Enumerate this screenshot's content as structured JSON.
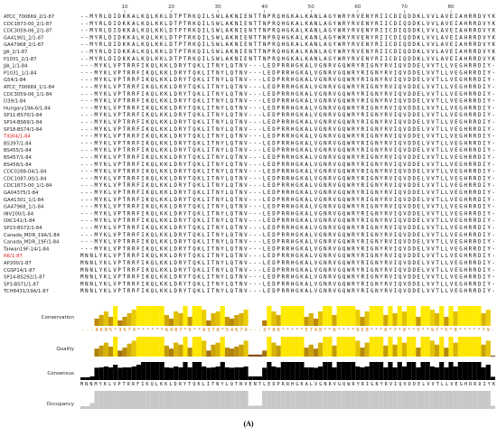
{
  "ruler": {
    "ticks": [
      10,
      20,
      30,
      40,
      50,
      60,
      70,
      80
    ]
  },
  "sequences": [
    {
      "name": "ATCC_700669_2/1-87",
      "sequence": "--MYRLDIDKKALKQLKKLDTPTRKQILSWLAKNIENTTNPRQHGKALKANLAGYWRYRVENYRIICDIQDDKLVVLAVEIAHRRDVYK"
    },
    {
      "name": "CDC1873-00_2/1-87",
      "sequence": "--MYRLDIDKKALKQLKKLDTPTRKQILSWLAKNIENTTNPRQHGKALKANLAGYWRYRVENYRIICDIQDDKLVVLAVEIAHRRDVYK"
    },
    {
      "name": "CDC3059-06_2/1-87",
      "sequence": "--MYRLDIDKKALKQLKKLDTPTRKQILSWLAKNIENTTNPRQHGKALKANLAGYWRYRVENYRIICDIQDDKLVVLAVEIAHRRDVYK"
    },
    {
      "name": "GA41901_2/1-87",
      "sequence": "--MYRLDIDKKALKQLKKLDTPTRKQILSWLAKNIENTTNPRQHGKALKANLAGYWRYRVENYRIICDIQDDKLVVLAVEIAHRRDVYK"
    },
    {
      "name": "GA47968_2/1-87",
      "sequence": "--MYRLDIDKKALKQLKKLDTPTRKQILSWLAKNIENTTNPRQHGKALKANLAGYWRYRVENYRIICDIQDDKLVVLAVEIAHRRDVYK"
    },
    {
      "name": "JJA_2/1-87",
      "sequence": "--MYRLDIDKKALKQLKKLDTPTRKQILSWLAKNIENTTNPRQHGKALKANLAGYWRYRVENYRIICDIQDDKLVVLAVEIAHRRDVYK"
    },
    {
      "name": "P1031_2/1-87",
      "sequence": "--MYRLDIDKKALKQLKKLDTPTRKQILSWLAKNIENTTNPRQHGKALKANLAGYWRYRVENYRIICDIQDDKLVVLAVEIAHRRDVYK"
    },
    {
      "name": "JJA_1/1-84",
      "sequence": "---MYKLVPTRRFIKQLKKLDRYTQKLITNYLQTNV---LEDPRRHGKALVGNRVGQWRYRIGNYRVIQVDDELVVTLLVEGHRRDIY-"
    },
    {
      "name": "P1031_1/1-84",
      "sequence": "---MYKLVPTRRFIKQLKKLDRYTQKLITNYLQTNV---LEDPRRHGKALVGNRVGQWRYRIGNYRVIQVDDELVVTLLVEGHRRDIY-"
    },
    {
      "name": "G54/1-84",
      "sequence": "---MYKLVPTRRFIKQLKKLDRYTQKLITNYLQTNV---LEDPRRHGKALVGNRVGQWRYRIGNYRVIQVDDELVVTLLVEGHRRDIY-"
    },
    {
      "name": "ATCC_700669_1/1-84",
      "sequence": "---MYKLVPTRRFIKQLKKLDRYTQKLITNYLQTNV---LEDPRRHGKALVGNRVGQWRYRIGNYRVIQVDDELVVTLLVEGHRRDIY-"
    },
    {
      "name": "CDC3059-06_1/1-84",
      "sequence": "---MYKLVPTRRFIKQLKKLDRYTQKLITNYLQTNV---LEDPRRHGKALVGNRVGQWRYRIGNYRVIQVDDELVVTLLVEGHRRDIY-"
    },
    {
      "name": "D39/1-84",
      "sequence": "---MYKLVPTRRFIKQLKKLDRYTQKLITNYLQTNV---LEDPRRHGKALVGNRVGQWRYRIGNYRVIQVDDELVVTLLVEGHRRDIY-"
    },
    {
      "name": "Hungary19A-6/1-84",
      "sequence": "---MYKLVPTRRFIKQLKKLDRYTQKLITNYLQTNV---LEDPRRHGKALVGNRVGQWRYRIGNYRVIQVDDELVVTLLVEGHRRDIY-"
    },
    {
      "name": "SP11-BS70/1-84",
      "sequence": "---MYKLVPTRRFIKQLKKLDRYTQKLITNYLQTNV---LEDPRRHGKALVGNRVGQWRYRIGNYRVIQVDDELVVTLLVEGHRRDIY-"
    },
    {
      "name": "SP14-BS69/1-84",
      "sequence": "---MYKLVPTRRFIKQLKKLDRYTQKLITNYLQTNV---LEDPRRHGKALVGNRVGQWRYRIGNYRVIQVDDELVVTLLVEGHRRDIY-"
    },
    {
      "name": "SP18-BS74/1-84",
      "sequence": "---MYKLVPTRRFIKQLKKLDRYTQKLITNYLQTNV---LEDPRRHGKALVGNRVGQWRYRIGNYRVIQVDDELVVTLLVEGHRRDIY-"
    },
    {
      "name": "TIGR4/1-84",
      "name_color": "#e0201a",
      "sequence": "---MYKLVPTRRFIKQLKKLDRYTQKLITNYLQTNV---LEDPRRHGKALVGNRVGQWRYRIGNYRVIQVDDELVVTLLVEGHRRDIY-"
    },
    {
      "name": "BS397/1-84",
      "sequence": "---MYKLVPTRRFIKQLKKLDRYTQKLITNYLQTNV---LEDPRRHGKALVGNRVGQWRYRIGNYRVIQVDDELVVTLLVEGHRRDIY-"
    },
    {
      "name": "BS455/1-84",
      "sequence": "---MYKLVPTRRFIKQLKKLDRYTQKLITNYLQTNV---LEDPRRHGKALVGNRVGQWRYRIGNYRVIQVDDELVVTLLVEGHRRDIY-"
    },
    {
      "name": "BS457/1-84",
      "sequence": "---MYKLVPTRRFIKQLKKLDRYTQKLITNYLQTNV---LEDPRRHGKALVGNRVGQWRYRIGNYRVIQVDDELVVTLLVEGHRRDIY-"
    },
    {
      "name": "BS458/1-84",
      "sequence": "---MYKLVPTRRFIKQLKKLDRYTQKLITNYLQTNV---LEDPRRHGKALVGNRVGQWRYRIGNYRVIQVDDELVVTLLVEGHRRDIY-"
    },
    {
      "name": "CDC0288-04/1-84",
      "sequence": "---MYKLVPTRRFIKQLKKLDRYTQKLITNYLQTNV---LEDPRRHGKALVGNRVGQWRYRIGNYRVIQVDDELVVTLLVEGHRRDIY-"
    },
    {
      "name": "CDC1087-00/1-84",
      "sequence": "---MYKLVPTRRFIKQLKKLDRYTQKLITNYLQTNV---LEDPRRHGKALVGNRVGQWRYRIGNYRVIQVDDELVVTLLVEGHRRDIY-"
    },
    {
      "name": "CDC1873-00_1/1-84",
      "sequence": "---MYKLVPTRRFIKQLKKLDRYTQKLITNYLQTNV---LEDPRRHGKALVGNRVGQWRYRIGNYRVIQVDDELVVTLLVEGHRRDIY-"
    },
    {
      "name": "GA04375/1-84",
      "sequence": "---MYKLVPTRRFIKQLKKLDRYTQKLITNYLQTNV---LEDPRRHGKALVGNRVGQWRYRIGNYRVIQVDDELVVTLLVEGHRRDIY-"
    },
    {
      "name": "GA41301_1/1-84",
      "sequence": "---MYKLVPTRRFIKQLKKLDRYTQKLITNYLQTNV---LEDPRRHGKALVGNRVGQWRYRIGNYRVIQVDDELVVTLLVEGHRRDIY-"
    },
    {
      "name": "GA47968_1/1-84",
      "sequence": "---MYKLVPTRRFIKQLKKLDRYTQKLITNYLQTNV---LEDPRRHGKALVGNRVGQWRYRIGNYRVIQVDDELVVTLLVEGHRRDIY-"
    },
    {
      "name": "INV200/1-84",
      "sequence": "---MYKLVPTRRFIKQLKKLDRYTQKLITNYLQTNV---LEDPRRHGKALVGNRVGQWRYRIGNYRVIQVDDELVVTLLVEGHRRDIY-"
    },
    {
      "name": "OXC141/1-84",
      "sequence": "---MYKLVPTRRFIKQLKKLDRYTQKLITNYLQTNV---LEDPRRHGKALVGNRVGQWRYRIGNYRVIQVDDELVVTLLVEGHRRDIY-"
    },
    {
      "name": "SP23-BS72/1-84",
      "sequence": "---MYKLVPTRRFIKQLKKLDRYTQKLITNYLQTNV---LEDPRRHGKALVGNRVGQWRYRIGNYRVIQVDDELVVTLLVEGHRRDIY-"
    },
    {
      "name": "Canada_MDR_19A/1-84",
      "sequence": "---MYKLVPTRRFIKQLKKLDRYTQKLITNYLQTNV---LEDPRRHGKALVGNRVGQWRYRIGNYRVIQVDDELVVTLLVEGHRRDIY-"
    },
    {
      "name": "Canada_MDR_19F/1-84",
      "sequence": "---MYKLVPTRRFIKQLKKLDRYTQKLITNYLQTNV---LEDPRRHGKALVGNRVGQWRYRIGNYRVIQVDDELVVTLLVEGHRRDIY-"
    },
    {
      "name": "Taiwan19F-14/1-84",
      "sequence": "---MYKLVPTRRFIKQLKKLDRYTQKLITNYLQTNV---LEDPRRHGKALVGNRVGQWRYRIGNYRVIQVDDELVVTLLVEGHRRDIY-"
    },
    {
      "name": "R6/1-87",
      "name_color": "#e0201a",
      "sequence": "MNNLYKLVPTRRFIKQLKKLDRYTQKLITNYLQTNV---LEDPRRHGKALVGNRVGQWRYRIGNYRVIQVDDELVVTLLVEGHRRDIY-"
    },
    {
      "name": "AP200/1-87",
      "sequence": "MNNLYKLVPTRRFIKQLKKLDRYTQKLITNYLQTNV---LEDPRRHGKALVGNRVGQWRYRIGNYRVIQVDDELVVTLLVEGHRRDIY-"
    },
    {
      "name": "CGSP14/1-87",
      "sequence": "MNNLYKLVPTRRFIKQLKKLDRYTQKLITNYLQTNV---LEDPRRHGKALVGNRVGQWRYRIGNYRVIQVDDELVVTLLVEGHRRDIY-"
    },
    {
      "name": "SP14-BS292/1-87",
      "sequence": "MNNLYKLVPTRRFIKQLKKLDRYTQKLITNYLQTNV---LEDPRRHGKALVGNRVGQWRYRIGNYRVIQVDDELVVTLLVEGHRRDIY-"
    },
    {
      "name": "SP3-BS71/1-87",
      "sequence": "MNNLYKLVPTRRFIKQLKKLDRYTQKLITNYLQTNV---LEDPRRHGKALVGNRVGQWRYRIGNYRVIQVDDELVVTLLVEGHRRDIY-"
    },
    {
      "name": "TCH8431/19A/1-87",
      "sequence": "MNNLYKLVPTRRFIKQLKKLDRYTQKLITNYLQTNV---LEDPRRHGKALVGNRVGQWRYRIGNYRVIQVDDELVVTLLVEGHRRDIY-"
    }
  ],
  "annotations": {
    "conservation": {
      "label": "Conservation",
      "ylim": [
        0,
        11
      ],
      "values": [
        0,
        0,
        0,
        4,
        6,
        8,
        5,
        11,
        3,
        5,
        7,
        9,
        11,
        11,
        11,
        11,
        11,
        11,
        6,
        4,
        8,
        7,
        11,
        5,
        11,
        11,
        9,
        3,
        7,
        8,
        11,
        5,
        4,
        6,
        7,
        9,
        0,
        0,
        0,
        3,
        11,
        8,
        6,
        11,
        11,
        11,
        11,
        11,
        5,
        7,
        4,
        8,
        11,
        11,
        6,
        11,
        11,
        11,
        11,
        9,
        5,
        8,
        11,
        11,
        11,
        6,
        11,
        7,
        11,
        8,
        11,
        11,
        5,
        11,
        11,
        9,
        7,
        11,
        5,
        11,
        8,
        11,
        11,
        11,
        11,
        11,
        7,
        9,
        0
      ],
      "value_labels": [
        "-",
        "-",
        "-",
        "4",
        "6",
        "8",
        "5",
        "*",
        "3",
        "5",
        "7",
        "9",
        "*",
        "*",
        "*",
        "*",
        "*",
        "*",
        "6",
        "4",
        "8",
        "7",
        "*",
        "5",
        "*",
        "*",
        "9",
        "3",
        "7",
        "8",
        "*",
        "5",
        "4",
        "6",
        "7",
        "9",
        "-",
        "-",
        "-",
        "3",
        "*",
        "8",
        "6",
        "*",
        "*",
        "*",
        "*",
        "*",
        "5",
        "7",
        "4",
        "8",
        "*",
        "*",
        "6",
        "*",
        "*",
        "*",
        "*",
        "9",
        "5",
        "8",
        "*",
        "*",
        "*",
        "6",
        "*",
        "7",
        "*",
        "8",
        "*",
        "*",
        "5",
        "*",
        "*",
        "9",
        "7",
        "*",
        "5",
        "*",
        "8",
        "*",
        "*",
        "*",
        "*",
        "*",
        "7",
        "9",
        "-"
      ]
    },
    "quality": {
      "label": "Quality",
      "ylim": [
        0,
        100
      ],
      "values": [
        0,
        0,
        0,
        40,
        55,
        70,
        50,
        100,
        30,
        45,
        65,
        80,
        100,
        100,
        100,
        100,
        100,
        100,
        55,
        40,
        70,
        60,
        100,
        45,
        100,
        100,
        80,
        30,
        60,
        70,
        100,
        45,
        40,
        50,
        60,
        80,
        10,
        10,
        10,
        30,
        100,
        70,
        55,
        100,
        100,
        100,
        100,
        100,
        45,
        60,
        40,
        70,
        100,
        100,
        55,
        100,
        100,
        100,
        100,
        80,
        45,
        70,
        100,
        100,
        100,
        55,
        100,
        60,
        100,
        70,
        100,
        100,
        45,
        100,
        100,
        80,
        60,
        100,
        45,
        100,
        70,
        100,
        100,
        100,
        100,
        100,
        60,
        80,
        5
      ]
    },
    "consensus": {
      "label": "Consensus",
      "ylim": [
        0,
        100
      ],
      "values": [
        15,
        15,
        20,
        68,
        70,
        75,
        70,
        85,
        68,
        70,
        70,
        75,
        85,
        100,
        100,
        100,
        100,
        100,
        70,
        68,
        75,
        70,
        100,
        70,
        100,
        100,
        75,
        68,
        70,
        75,
        100,
        70,
        68,
        70,
        70,
        75,
        20,
        20,
        20,
        68,
        100,
        75,
        70,
        100,
        100,
        100,
        100,
        100,
        70,
        70,
        68,
        75,
        100,
        100,
        70,
        100,
        100,
        100,
        100,
        75,
        70,
        75,
        100,
        100,
        100,
        70,
        100,
        70,
        100,
        75,
        100,
        100,
        70,
        100,
        100,
        75,
        70,
        100,
        70,
        100,
        75,
        100,
        100,
        100,
        100,
        100,
        70,
        85,
        18
      ],
      "sequence": "MNNMYKLVPTRRFIKQLKKLDRYTQKLITNYLQTNVENTLEDPRRHGKALVGNRVGQWRYRIGNYRVIQVDDELVVTLLVEGHRRDIYK"
    },
    "occupancy": {
      "label": "Occupancy",
      "ylim": [
        0,
        40
      ],
      "values": [
        6,
        6,
        13,
        40,
        40,
        40,
        40,
        40,
        40,
        40,
        40,
        40,
        40,
        40,
        40,
        40,
        40,
        40,
        40,
        40,
        40,
        40,
        40,
        40,
        40,
        40,
        40,
        40,
        40,
        40,
        40,
        40,
        40,
        40,
        40,
        40,
        7,
        7,
        7,
        40,
        40,
        40,
        40,
        40,
        40,
        40,
        40,
        40,
        40,
        40,
        40,
        40,
        40,
        40,
        40,
        40,
        40,
        40,
        40,
        40,
        40,
        40,
        40,
        40,
        40,
        40,
        40,
        40,
        40,
        40,
        40,
        40,
        40,
        40,
        40,
        40,
        40,
        40,
        40,
        40,
        40,
        40,
        40,
        40,
        40,
        40,
        40,
        40,
        7
      ]
    }
  },
  "caption": "(A)"
}
